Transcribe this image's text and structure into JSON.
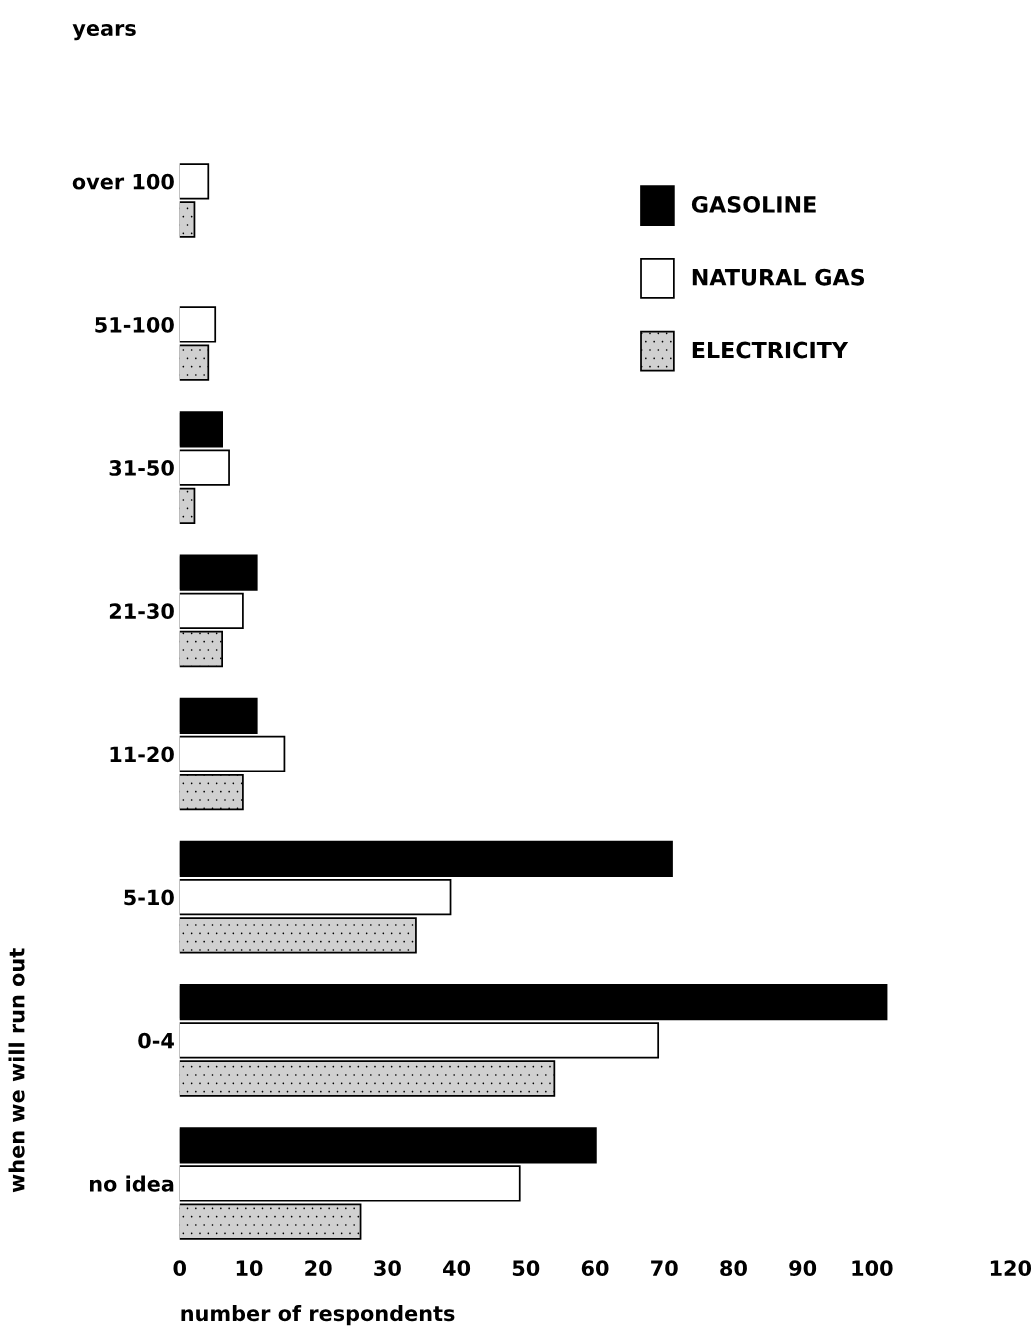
{
  "chart_data": {
    "type": "bar",
    "orientation": "horizontal",
    "categories": [
      "over 100",
      "51-100",
      "31-50",
      "21-30",
      "11-20",
      "5-10",
      "0-4",
      "no idea"
    ],
    "series": [
      {
        "name": "GASOLINE",
        "color": "#000000",
        "values": [
          0,
          0,
          6,
          11,
          11,
          71,
          102,
          60
        ]
      },
      {
        "name": "NATURAL GAS",
        "color": "#ffffff",
        "values": [
          4,
          5,
          7,
          9,
          15,
          39,
          69,
          49
        ]
      },
      {
        "name": "ELECTRICITY",
        "color": "#d0d0d0",
        "values": [
          2,
          4,
          2,
          6,
          9,
          34,
          54,
          26
        ]
      }
    ],
    "xlim": [
      0,
      120
    ],
    "xticks": [
      0,
      10,
      20,
      30,
      40,
      50,
      60,
      70,
      80,
      90,
      100,
      120
    ],
    "xlabel": "number of respondents",
    "ylabel": "when we will run out",
    "annotations": [
      "years"
    ],
    "legend": "top right",
    "grid": false
  }
}
